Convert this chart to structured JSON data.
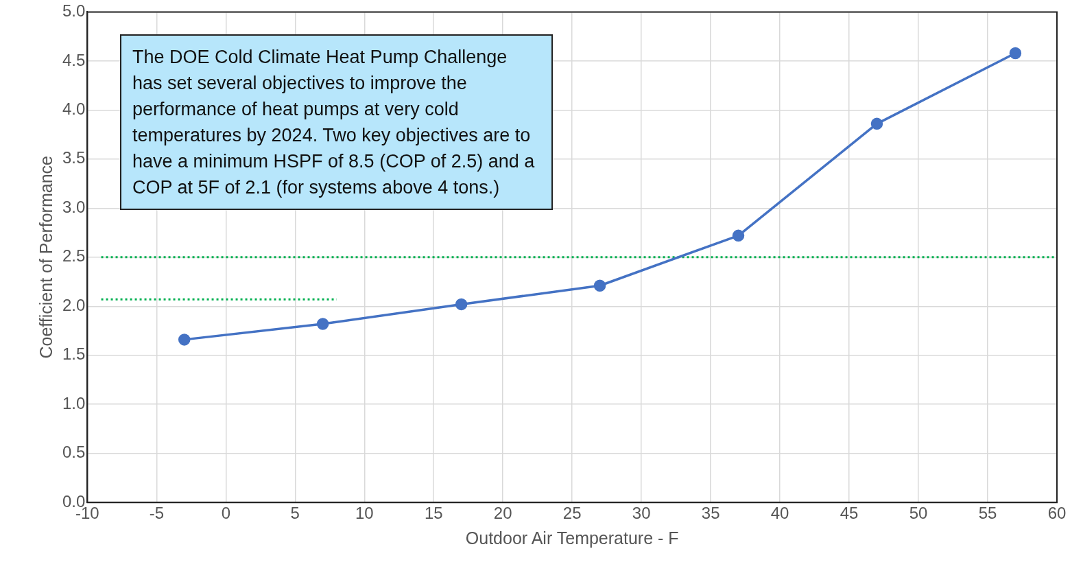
{
  "chart_data": {
    "type": "line",
    "xlabel": "Outdoor Air Temperature - F",
    "ylabel": "Coefficient of Performance",
    "xlim": [
      -10,
      60
    ],
    "xticks": [
      -10,
      -5,
      0,
      5,
      10,
      15,
      20,
      25,
      30,
      35,
      40,
      45,
      50,
      55,
      60
    ],
    "ylim": [
      0,
      5
    ],
    "yticks": [
      {
        "value": 0,
        "label": "0.0"
      },
      {
        "value": 0.5,
        "label": "0.5"
      },
      {
        "value": 1,
        "label": "1.0"
      },
      {
        "value": 1.5,
        "label": "1.5"
      },
      {
        "value": 2,
        "label": "2.0"
      },
      {
        "value": 2.5,
        "label": "2.5"
      },
      {
        "value": 3,
        "label": "3.0"
      },
      {
        "value": 3.5,
        "label": "3.5"
      },
      {
        "value": 4,
        "label": "4.0"
      },
      {
        "value": 4.5,
        "label": "4.5"
      },
      {
        "value": 5,
        "label": "5.0"
      }
    ],
    "grid": true,
    "legend": false,
    "series": [
      {
        "color": "#4472c4",
        "marker": "circle",
        "line_style": "solid",
        "x": [
          -3,
          7,
          17,
          27,
          37,
          47,
          57
        ],
        "values": [
          1.66,
          1.82,
          2.02,
          2.21,
          2.72,
          3.86,
          4.58
        ]
      },
      {
        "color": "#00b050",
        "marker": "none",
        "line_style": "dotted",
        "x": [
          -9,
          60
        ],
        "values": [
          2.5,
          2.5
        ]
      },
      {
        "color": "#00b050",
        "marker": "none",
        "line_style": "dotted",
        "x": [
          -9,
          8
        ],
        "values": [
          2.07,
          2.07
        ]
      }
    ],
    "annotations": [
      "The DOE Cold Climate Heat Pump Challenge has set several objectives to improve the performance of heat pumps at very cold temperatures by 2024. Two key objectives are to have a minimum HSPF of 8.5 (COP of 2.5) and a COP at 5F of 2.1 (for systems above 4 tons.)"
    ]
  }
}
